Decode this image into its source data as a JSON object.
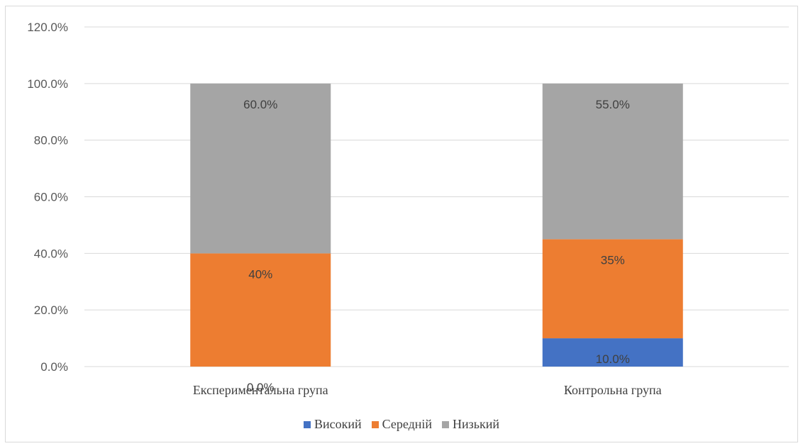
{
  "chart_data": {
    "type": "bar",
    "stacked": true,
    "categories": [
      "Експериментальна група",
      "Контрольна група"
    ],
    "series": [
      {
        "name": "Високий",
        "color": "#4472C4",
        "values": [
          0.0,
          10.0
        ],
        "labels": [
          "0.0%",
          "10.0%"
        ]
      },
      {
        "name": "Середній",
        "color": "#ED7D31",
        "values": [
          40.0,
          35.0
        ],
        "labels": [
          "40%",
          "35%"
        ]
      },
      {
        "name": "Низький",
        "color": "#A5A5A5",
        "values": [
          60.0,
          55.0
        ],
        "labels": [
          "60.0%",
          "55.0%"
        ]
      }
    ],
    "yticks": [
      "0.0%",
      "20.0%",
      "40.0%",
      "60.0%",
      "80.0%",
      "100.0%",
      "120.0%"
    ],
    "ylim": [
      0,
      120
    ],
    "grid": true,
    "legend_position": "bottom",
    "title": "",
    "xlabel": "",
    "ylabel": ""
  }
}
